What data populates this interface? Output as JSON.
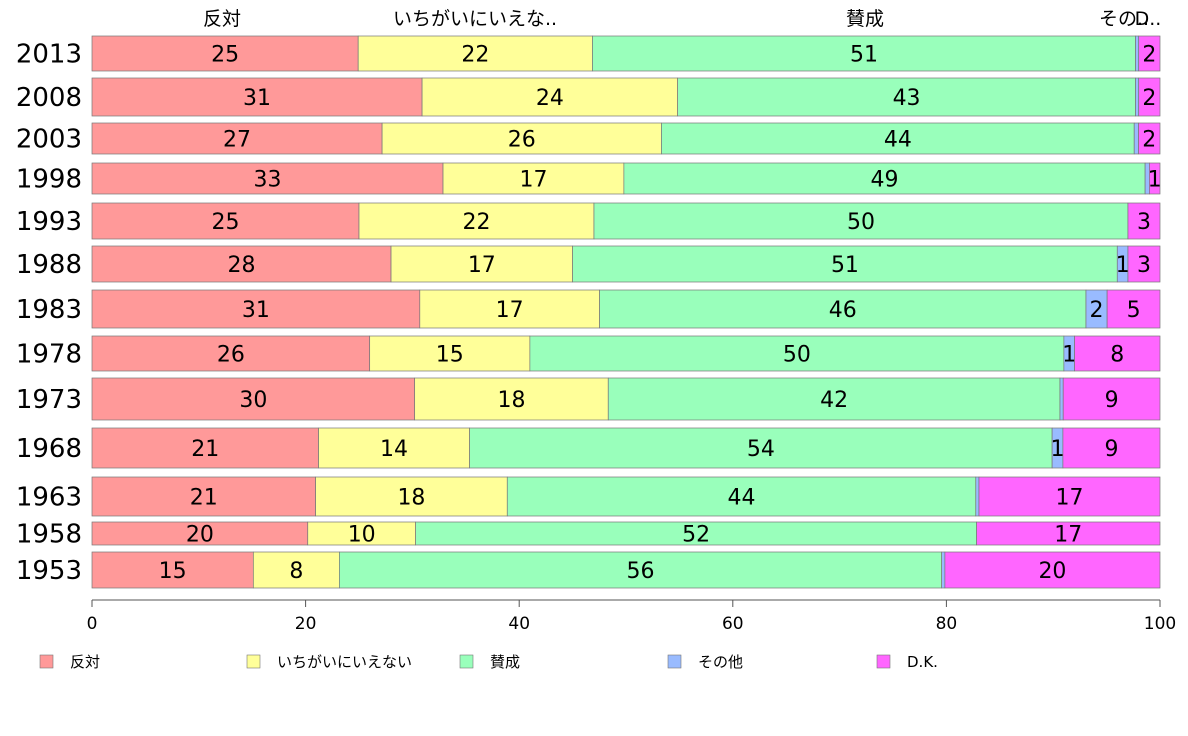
{
  "chart_data": {
    "type": "bar",
    "orientation": "horizontal",
    "stacked": true,
    "normalized": true,
    "categories": [
      "2013",
      "2008",
      "2003",
      "1998",
      "1993",
      "1988",
      "1983",
      "1978",
      "1973",
      "1968",
      "1963",
      "1958",
      "1953"
    ],
    "series": [
      {
        "name": "反対",
        "color": "#ff9999",
        "values": [
          25,
          31,
          27,
          33,
          25,
          28,
          31,
          26,
          30,
          21,
          21,
          20,
          15
        ]
      },
      {
        "name": "いちがいにいえない",
        "color": "#ffff99",
        "values": [
          22,
          24,
          26,
          17,
          22,
          17,
          17,
          15,
          18,
          14,
          18,
          10,
          8
        ]
      },
      {
        "name": "賛成",
        "color": "#99ffbb",
        "values": [
          51,
          43,
          44,
          49,
          50,
          51,
          46,
          50,
          42,
          54,
          44,
          52,
          56
        ]
      },
      {
        "name": "その他",
        "color": "#99bbff",
        "values": [
          0.3,
          0.3,
          0.4,
          0.4,
          0,
          1,
          2,
          1,
          0.3,
          1,
          0.3,
          0,
          0.3
        ]
      },
      {
        "name": "D.K.",
        "color": "#ff66ff",
        "values": [
          2,
          2,
          2,
          1,
          3,
          3,
          5,
          8,
          9,
          9,
          17,
          17,
          20
        ]
      }
    ],
    "data_labels": [
      [
        "25",
        "22",
        "51",
        "",
        "2"
      ],
      [
        "31",
        "24",
        "43",
        "",
        "2"
      ],
      [
        "27",
        "26",
        "44",
        "",
        "2"
      ],
      [
        "33",
        "17",
        "49",
        "",
        "1"
      ],
      [
        "25",
        "22",
        "50",
        "",
        "3"
      ],
      [
        "28",
        "17",
        "51",
        "1",
        "3"
      ],
      [
        "31",
        "17",
        "46",
        "2",
        "5"
      ],
      [
        "26",
        "15",
        "50",
        "1",
        "8"
      ],
      [
        "30",
        "18",
        "42",
        "",
        "9"
      ],
      [
        "21",
        "14",
        "54",
        "1",
        "9"
      ],
      [
        "21",
        "18",
        "44",
        "",
        "17"
      ],
      [
        "20",
        "10",
        "52",
        "",
        "17"
      ],
      [
        "15",
        "8",
        "56",
        "",
        "20"
      ]
    ],
    "column_headers": [
      "反対",
      "いちがいにいえな..",
      "賛成",
      "その..",
      "D.."
    ],
    "xlim": [
      0,
      100
    ],
    "xticks": [
      "0",
      "20",
      "40",
      "60",
      "80",
      "100"
    ],
    "xlabel": "",
    "ylabel": "",
    "title": "",
    "grid": false,
    "legend_position": "bottom"
  }
}
